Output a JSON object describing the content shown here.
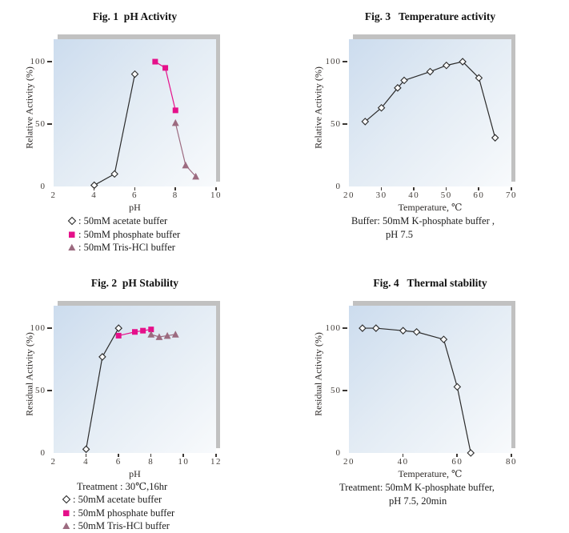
{
  "page": {
    "background": "#ffffff"
  },
  "styles": {
    "accent_pink": "#e5108a",
    "mauve": "#9c6b80",
    "line_dark": "#2b2b2b",
    "plot_gradient_start": "#ccdcee",
    "plot_gradient_end": "#f8fafc",
    "shadow_gray": "#c1c1c1",
    "tick_text": "#45403c"
  },
  "chart_data": [
    {
      "id": "fig1",
      "type": "line",
      "title": "Fig. 1  pH Activity",
      "xlabel": "pH",
      "ylabel": "Relative Activity (%)",
      "xlim": [
        2,
        10
      ],
      "xticks": [
        2,
        4,
        6,
        8,
        10
      ],
      "ylim": [
        0,
        118
      ],
      "yticks": [
        0,
        50,
        100
      ],
      "grid": false,
      "legend_position": "below",
      "series": [
        {
          "name": "50mM acetate buffer",
          "marker": "diamond",
          "color": "#2b2b2b",
          "marker_fill": "#ffffff",
          "points": [
            [
              4,
              1
            ],
            [
              5,
              10
            ],
            [
              6,
              90
            ]
          ]
        },
        {
          "name": "50mM phosphate buffer",
          "marker": "square",
          "color": "#e5108a",
          "points": [
            [
              7,
              100
            ],
            [
              7.5,
              95
            ],
            [
              8,
              61
            ]
          ]
        },
        {
          "name": "50mM Tris-HCl buffer",
          "marker": "triangle",
          "color": "#9c6b80",
          "points": [
            [
              8,
              51
            ],
            [
              8.5,
              17
            ],
            [
              9,
              8
            ]
          ]
        }
      ],
      "legend": [
        {
          "marker": "diamond",
          "text": ": 50mM acetate buffer"
        },
        {
          "marker": "square",
          "text": ": 50mM phosphate buffer"
        },
        {
          "marker": "triangle",
          "text": ": 50mM Tris-HCl buffer"
        }
      ],
      "captions": []
    },
    {
      "id": "fig2",
      "type": "line",
      "title": "Fig. 2  pH Stability",
      "xlabel": "pH",
      "ylabel": "Residual Activity (%)",
      "xlim": [
        2,
        12
      ],
      "xticks": [
        2,
        4,
        6,
        8,
        10,
        12
      ],
      "ylim": [
        0,
        118
      ],
      "yticks": [
        0,
        50,
        100
      ],
      "grid": false,
      "legend_position": "below",
      "series": [
        {
          "name": "50mM acetate buffer",
          "marker": "diamond",
          "color": "#2b2b2b",
          "marker_fill": "#ffffff",
          "points": [
            [
              4,
              3
            ],
            [
              5,
              77
            ],
            [
              6,
              100
            ]
          ]
        },
        {
          "name": "50mM phosphate buffer",
          "marker": "square",
          "color": "#e5108a",
          "points": [
            [
              6,
              94
            ],
            [
              7,
              97
            ],
            [
              7.5,
              98
            ],
            [
              8,
              99
            ]
          ]
        },
        {
          "name": "50mM Tris-HCl buffer",
          "marker": "triangle",
          "color": "#9c6b80",
          "points": [
            [
              8,
              95
            ],
            [
              8.5,
              93
            ],
            [
              9,
              94
            ],
            [
              9.5,
              95
            ]
          ]
        }
      ],
      "legend": [
        {
          "marker": "diamond",
          "text": ": 50mM acetate buffer"
        },
        {
          "marker": "square",
          "text": ": 50mM phosphate buffer"
        },
        {
          "marker": "triangle",
          "text": ": 50mM Tris-HCl buffer"
        }
      ],
      "captions": [
        "Treatment : 30℃,16hr"
      ]
    },
    {
      "id": "fig3",
      "type": "line",
      "title": "Fig. 3   Temperature activity",
      "xlabel": "Temperature, ℃",
      "ylabel": "Relative Activity (%)",
      "xlim": [
        20,
        70
      ],
      "xticks": [
        20,
        30,
        40,
        50,
        60,
        70
      ],
      "ylim": [
        0,
        118
      ],
      "yticks": [
        0,
        50,
        100
      ],
      "grid": false,
      "legend_position": "none",
      "series": [
        {
          "name": "Relative activity",
          "marker": "diamond",
          "color": "#2b2b2b",
          "marker_fill": "#ffffff",
          "points": [
            [
              25,
              52
            ],
            [
              30,
              63
            ],
            [
              35,
              79
            ],
            [
              37,
              85
            ],
            [
              45,
              92
            ],
            [
              50,
              97
            ],
            [
              55,
              100
            ],
            [
              60,
              87
            ],
            [
              65,
              39
            ]
          ]
        }
      ],
      "legend": [],
      "captions": [
        "Buffer: 50mM K-phosphate buffer ,",
        "pH 7.5"
      ]
    },
    {
      "id": "fig4",
      "type": "line",
      "title": "Fig. 4   Thermal stability",
      "xlabel": "Temperature, ℃",
      "ylabel": "Residual Activity (%)",
      "xlim": [
        20,
        80
      ],
      "xticks": [
        20,
        40,
        60,
        80
      ],
      "ylim": [
        0,
        118
      ],
      "yticks": [
        0,
        50,
        100
      ],
      "grid": false,
      "legend_position": "none",
      "series": [
        {
          "name": "Residual activity",
          "marker": "diamond",
          "color": "#2b2b2b",
          "marker_fill": "#ffffff",
          "points": [
            [
              25,
              100
            ],
            [
              30,
              100
            ],
            [
              40,
              98
            ],
            [
              45,
              97
            ],
            [
              55,
              91
            ],
            [
              60,
              53
            ],
            [
              65,
              0
            ]
          ]
        }
      ],
      "legend": [],
      "captions": [
        "Treatment: 50mM K-phosphate buffer,",
        "pH 7.5, 20min"
      ]
    }
  ]
}
